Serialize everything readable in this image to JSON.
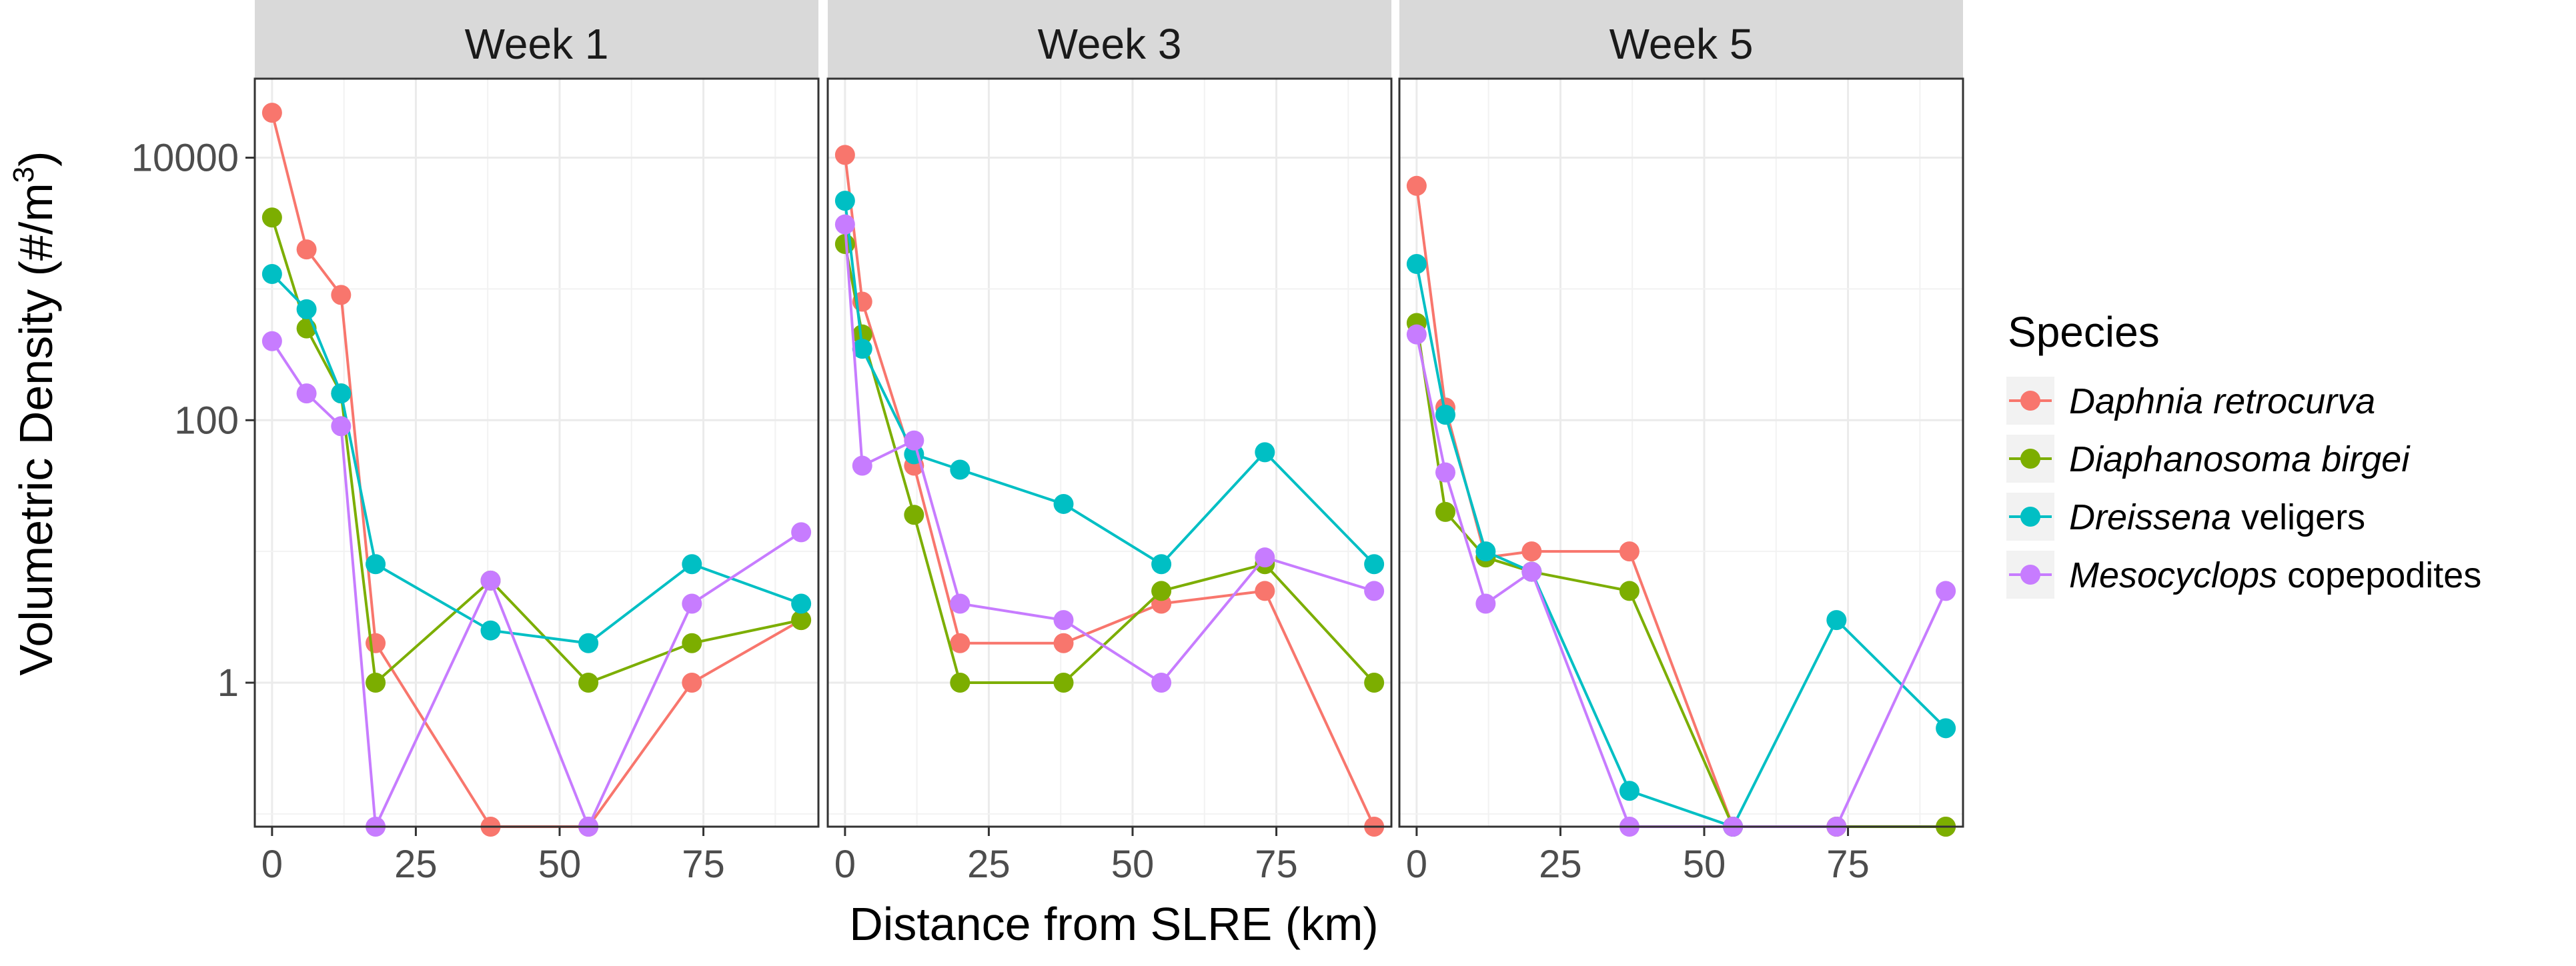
{
  "chart_data": {
    "type": "line",
    "x_scale": "linear",
    "y_scale": "log10",
    "xlabel": "Distance from SLRE (km)",
    "ylabel": "Volumetric Density (#/m",
    "ylabel_sup": "3",
    "ylabel_close": ")",
    "xlim": [
      -3,
      95
    ],
    "ylim": [
      0.08,
      40000
    ],
    "x_ticks": [
      0,
      25,
      50,
      75
    ],
    "x_tick_labels": [
      "0",
      "25",
      "50",
      "75"
    ],
    "y_ticks": [
      1,
      100,
      10000
    ],
    "y_tick_labels": [
      "1",
      "100",
      "10000"
    ],
    "legend": {
      "title": "Species",
      "entries": [
        {
          "italic": "Daphnia retrocurva",
          "plain": ""
        },
        {
          "italic": "Diaphanosoma birgei",
          "plain": ""
        },
        {
          "italic": "Dreissena",
          "plain": " veligers"
        },
        {
          "italic": "Mesocyclops",
          "plain": " copepodites"
        }
      ]
    },
    "colors": [
      "#F8766D",
      "#7CAE00",
      "#00BFC4",
      "#C77CFF"
    ],
    "facets": [
      {
        "title": "Week 1",
        "series": [
          {
            "name": "Daphnia retrocurva",
            "points": [
              [
                0,
                22000
              ],
              [
                6,
                2000
              ],
              [
                12,
                900
              ],
              [
                18,
                2
              ],
              [
                38,
                0.08
              ],
              [
                55,
                0.08
              ],
              [
                73,
                1
              ],
              [
                92,
                3
              ]
            ]
          },
          {
            "name": "Diaphanosoma birgei",
            "points": [
              [
                0,
                3500
              ],
              [
                6,
                500
              ],
              [
                12,
                160
              ],
              [
                18,
                1
              ],
              [
                38,
                6
              ],
              [
                55,
                1
              ],
              [
                73,
                2
              ],
              [
                92,
                3
              ]
            ]
          },
          {
            "name": "Dreissena veligers",
            "points": [
              [
                0,
                1300
              ],
              [
                6,
                700
              ],
              [
                12,
                160
              ],
              [
                18,
                8
              ],
              [
                38,
                2.5
              ],
              [
                55,
                2
              ],
              [
                73,
                8
              ],
              [
                92,
                4
              ]
            ]
          },
          {
            "name": "Mesocyclops copepodites",
            "points": [
              [
                0,
                400
              ],
              [
                6,
                160
              ],
              [
                12,
                90
              ],
              [
                18,
                0.08
              ],
              [
                38,
                6
              ],
              [
                55,
                0.08
              ],
              [
                73,
                4
              ],
              [
                92,
                14
              ]
            ]
          }
        ]
      },
      {
        "title": "Week 3",
        "series": [
          {
            "name": "Daphnia retrocurva",
            "points": [
              [
                0,
                10500
              ],
              [
                3,
                800
              ],
              [
                12,
                45
              ],
              [
                20,
                2
              ],
              [
                38,
                2
              ],
              [
                55,
                4
              ],
              [
                73,
                5
              ],
              [
                92,
                0.08
              ]
            ]
          },
          {
            "name": "Diaphanosoma birgei",
            "points": [
              [
                0,
                2200
              ],
              [
                3,
                450
              ],
              [
                12,
                19
              ],
              [
                20,
                1
              ],
              [
                38,
                1
              ],
              [
                55,
                5
              ],
              [
                73,
                8
              ],
              [
                92,
                1
              ]
            ]
          },
          {
            "name": "Dreissena veligers",
            "points": [
              [
                0,
                4700
              ],
              [
                3,
                350
              ],
              [
                12,
                55
              ],
              [
                20,
                42
              ],
              [
                38,
                23
              ],
              [
                55,
                8
              ],
              [
                73,
                57
              ],
              [
                92,
                8
              ]
            ]
          },
          {
            "name": "Mesocyclops copepodites",
            "points": [
              [
                0,
                3100
              ],
              [
                3,
                45
              ],
              [
                12,
                70
              ],
              [
                20,
                4
              ],
              [
                38,
                3
              ],
              [
                55,
                1
              ],
              [
                73,
                9
              ],
              [
                92,
                5
              ]
            ]
          }
        ]
      },
      {
        "title": "Week 5",
        "series": [
          {
            "name": "Daphnia retrocurva",
            "points": [
              [
                0,
                6100
              ],
              [
                5,
                125
              ],
              [
                12,
                9
              ],
              [
                20,
                10
              ],
              [
                37,
                10
              ],
              [
                55,
                0.08
              ],
              [
                73,
                0.08
              ],
              [
                92,
                0.08
              ]
            ]
          },
          {
            "name": "Diaphanosoma birgei",
            "points": [
              [
                0,
                550
              ],
              [
                5,
                20
              ],
              [
                12,
                9
              ],
              [
                20,
                7
              ],
              [
                37,
                5
              ],
              [
                55,
                0.08
              ],
              [
                73,
                0.08
              ],
              [
                92,
                0.08
              ]
            ]
          },
          {
            "name": "Dreissena veligers",
            "points": [
              [
                0,
                1550
              ],
              [
                5,
                110
              ],
              [
                12,
                10
              ],
              [
                20,
                7
              ],
              [
                37,
                0.15
              ],
              [
                55,
                0.08
              ],
              [
                73,
                3
              ],
              [
                92,
                0.45
              ]
            ]
          },
          {
            "name": "Mesocyclops copepodites",
            "points": [
              [
                0,
                450
              ],
              [
                5,
                40
              ],
              [
                12,
                4
              ],
              [
                20,
                7
              ],
              [
                37,
                0.08
              ],
              [
                55,
                0.08
              ],
              [
                73,
                0.08
              ],
              [
                92,
                5
              ]
            ]
          }
        ]
      }
    ]
  }
}
